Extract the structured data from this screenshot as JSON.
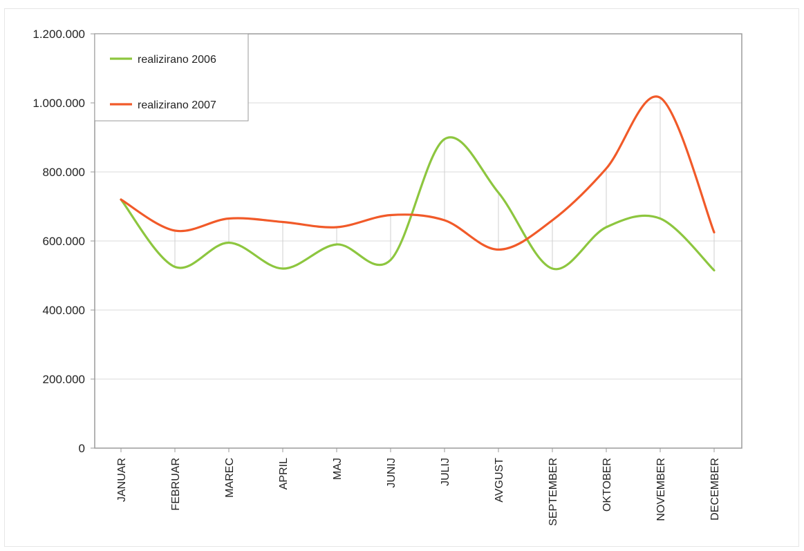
{
  "chart_data": {
    "type": "line",
    "categories": [
      "JANUAR",
      "FEBRUAR",
      "MAREC",
      "APRIL",
      "MAJ",
      "JUNIJ",
      "JULIJ",
      "AVGUST",
      "SEPTEMBER",
      "OKTOBER",
      "NOVEMBER",
      "DECEMBER"
    ],
    "series": [
      {
        "name": "realizirano 2006",
        "color": "#8dc63f",
        "values": [
          720000,
          525000,
          595000,
          520000,
          590000,
          545000,
          895000,
          740000,
          520000,
          640000,
          665000,
          515000
        ]
      },
      {
        "name": "realizirano 2007",
        "color": "#f15a29",
        "values": [
          720000,
          630000,
          665000,
          655000,
          640000,
          675000,
          660000,
          575000,
          660000,
          810000,
          1015000,
          625000
        ]
      }
    ],
    "yticks": [
      "0",
      "200.000",
      "400.000",
      "600.000",
      "800.000",
      "1.000.000",
      "1.200.000"
    ],
    "ylim": [
      0,
      1200000
    ],
    "grid": true,
    "drop_lines": true,
    "smooth": true,
    "legend_position": "top-left",
    "title": "",
    "xlabel": "",
    "ylabel": ""
  }
}
